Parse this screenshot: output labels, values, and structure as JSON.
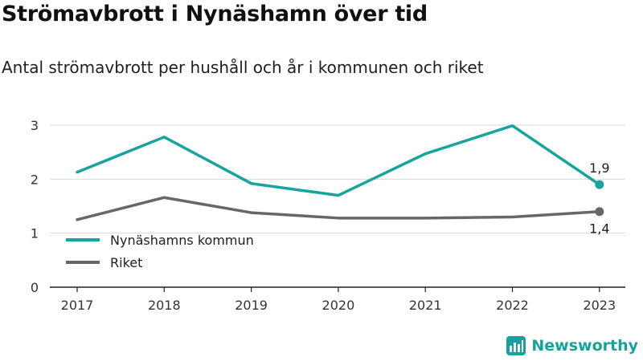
{
  "title": "Strömavbrott i Nynäshamn över tid",
  "subtitle": "Antal strömavbrott per hushåll och år i kommunen och riket",
  "brand": "Newsworthy",
  "colors": {
    "nynashamn": "#17a39e",
    "riket": "#67666d",
    "grid": "#d9d9d9",
    "axis": "#222222"
  },
  "chart_data": {
    "type": "line",
    "x": [
      "2017",
      "2018",
      "2019",
      "2020",
      "2021",
      "2022",
      "2023"
    ],
    "ylim": [
      0,
      3
    ],
    "yticks": [
      "0",
      "1",
      "2",
      "3"
    ],
    "grid": true,
    "legend_position": "bottom-left",
    "series": [
      {
        "name": "Nynäshamns kommun",
        "values": [
          2.13,
          2.78,
          1.92,
          1.7,
          2.47,
          2.99,
          1.9
        ],
        "last_label": "1,9",
        "color": "#17a39e"
      },
      {
        "name": "Riket",
        "values": [
          1.25,
          1.66,
          1.38,
          1.28,
          1.28,
          1.3,
          1.4
        ],
        "last_label": "1,4",
        "color": "#67666d"
      }
    ]
  }
}
